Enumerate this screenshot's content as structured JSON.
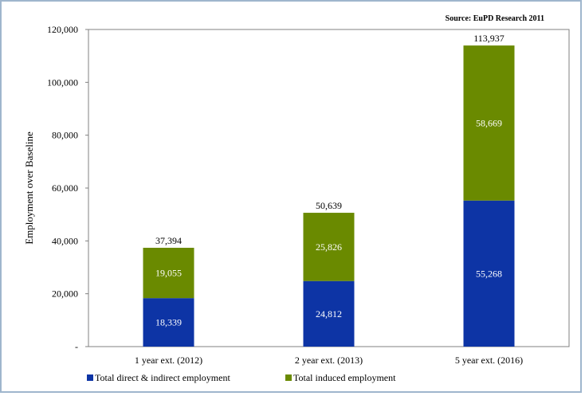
{
  "source_note": "Source: EuPD Research 2011",
  "chart_data": {
    "type": "bar",
    "stacked": true,
    "categories": [
      "1 year ext. (2012)",
      "2 year ext. (2013)",
      "5 year ext. (2016)"
    ],
    "series": [
      {
        "name": "Total direct & indirect employment",
        "color": "#0d34a5",
        "values": [
          18339,
          24812,
          55268
        ],
        "labels": [
          "18,339",
          "24,812",
          "55,268"
        ]
      },
      {
        "name": "Total induced employment",
        "color": "#6a8a00",
        "values": [
          19055,
          25826,
          58669
        ],
        "labels": [
          "19,055",
          "25,826",
          "58,669"
        ]
      }
    ],
    "totals": [
      37394,
      50639,
      113937
    ],
    "total_labels": [
      "37,394",
      "50,639",
      "113,937"
    ],
    "ylabel": "Employment over Baseline",
    "ylim": [
      0,
      120000
    ],
    "yticks": [
      0,
      20000,
      40000,
      60000,
      80000,
      100000,
      120000
    ],
    "ytick_labels": [
      "-",
      "20,000",
      "40,000",
      "60,000",
      "80,000",
      "100,000",
      "120,000"
    ],
    "grid": false,
    "legend": "bottom"
  }
}
